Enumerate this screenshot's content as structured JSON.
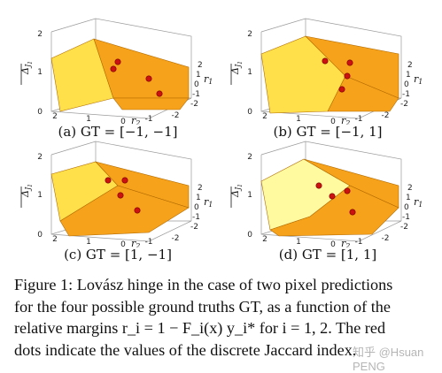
{
  "colors": {
    "orange": "#f7a21b",
    "yellow": "#ffe04a",
    "pale_yellow": "#fffaa0",
    "dot": "#cc1111"
  },
  "panels": [
    {
      "caption": "(a) GT = [−1, −1]",
      "z_ticks": [
        "2",
        "1",
        "0"
      ],
      "x_ticks": [
        "2",
        "1",
        "0"
      ],
      "r2_ticks": [
        "-1",
        "-2"
      ],
      "r1_ticks": [
        "2",
        "1",
        "0",
        "-1",
        "-2"
      ],
      "z_label": "Δ",
      "z_sub": "J",
      "z_subsub": "1",
      "r2_label": "r",
      "r2_sub": "2",
      "r1_label": "r",
      "r1_sub": "1"
    },
    {
      "caption": "(b) GT = [−1, 1]",
      "z_ticks": [
        "2",
        "1",
        "0"
      ],
      "x_ticks": [
        "2",
        "1",
        "0"
      ],
      "r2_ticks": [
        "-1",
        "-2"
      ],
      "r1_ticks": [
        "2",
        "1",
        "0",
        "-1",
        "-2"
      ],
      "z_label": "Δ",
      "z_sub": "J",
      "z_subsub": "1",
      "r2_label": "r",
      "r2_sub": "2",
      "r1_label": "r",
      "r1_sub": "1"
    },
    {
      "caption": "(c) GT = [1, −1]",
      "z_ticks": [
        "2",
        "1",
        "0"
      ],
      "x_ticks": [
        "2",
        "1",
        "0"
      ],
      "r2_ticks": [
        "-1",
        "-2"
      ],
      "r1_ticks": [
        "2",
        "1",
        "0",
        "-1",
        "-2"
      ],
      "z_label": "Δ",
      "z_sub": "J",
      "z_subsub": "1",
      "r2_label": "r",
      "r2_sub": "2",
      "r1_label": "r",
      "r1_sub": "1"
    },
    {
      "caption": "(d) GT = [1, 1]",
      "z_ticks": [
        "2",
        "1",
        "0"
      ],
      "x_ticks": [
        "2",
        "1",
        "0"
      ],
      "r2_ticks": [
        "-1",
        "-2"
      ],
      "r1_ticks": [
        "2",
        "1",
        "0",
        "-1",
        "-2"
      ],
      "z_label": "Δ",
      "z_sub": "J",
      "z_subsub": "1",
      "r2_label": "r",
      "r2_sub": "2",
      "r1_label": "r",
      "r1_sub": "1"
    }
  ],
  "caption": {
    "line1": "Figure 1: Lovász hinge in the case of two pixel predictions",
    "line2": "for the four possible ground truths GT, as a function of the",
    "line3": "relative margins r_i = 1 − F_i(x) y_i* for i = 1, 2. The red",
    "line4": "dots indicate the values of the discrete Jaccard index."
  },
  "watermark": "知乎 @Hsuan PENG"
}
